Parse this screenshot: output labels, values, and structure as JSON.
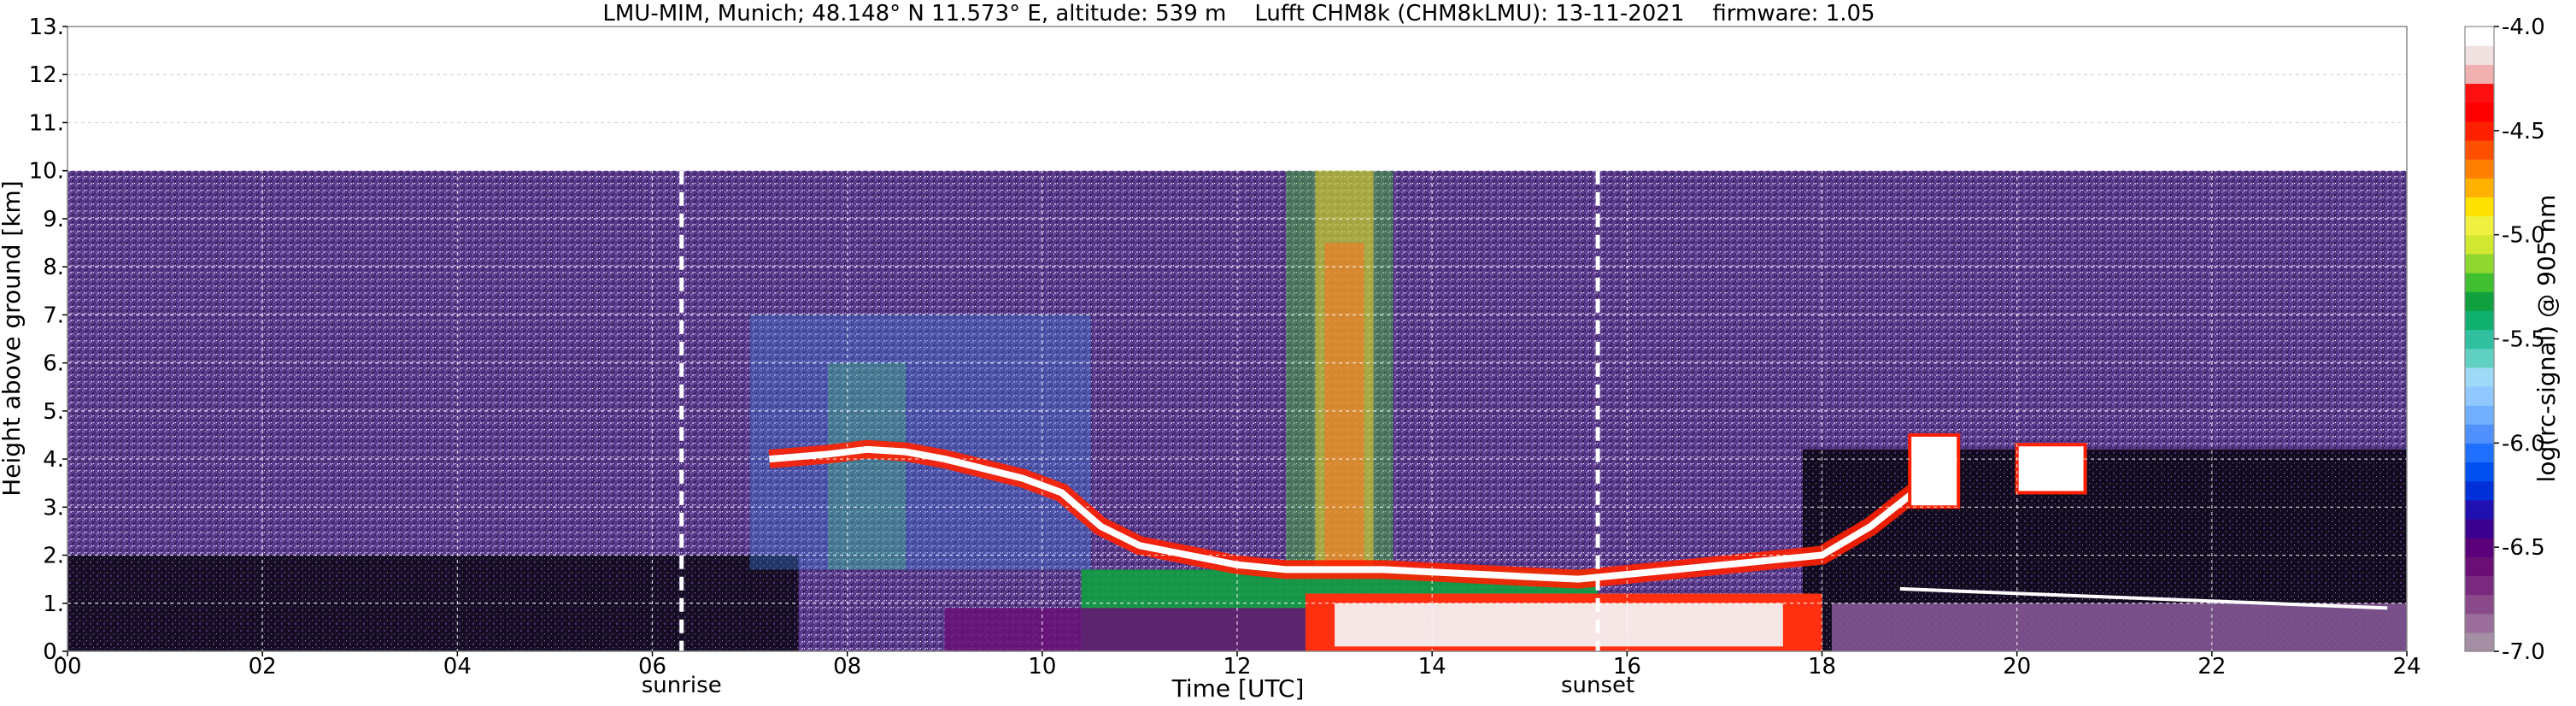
{
  "chart_data": {
    "type": "heatmap",
    "title": "LMU-MIM, Munich; 48.148° N 11.573° E, altitude: 539 m    Lufft CHM8k (CHM8kLMU): 13-11-2021    firmware: 1.05",
    "xlabel": "Time [UTC]",
    "ylabel": "Height above ground [km]",
    "xlim": [
      0,
      24
    ],
    "ylim": [
      0,
      13
    ],
    "x_ticks": [
      "00",
      "02",
      "04",
      "06",
      "08",
      "10",
      "12",
      "14",
      "16",
      "18",
      "20",
      "22",
      "24"
    ],
    "x_tick_values": [
      0,
      2,
      4,
      6,
      8,
      10,
      12,
      14,
      16,
      18,
      20,
      22,
      24
    ],
    "y_ticks": [
      "0.",
      "1.",
      "2.",
      "3.",
      "4.",
      "5.",
      "6.",
      "7.",
      "8.",
      "9.",
      "10.",
      "11.",
      "12.",
      "13."
    ],
    "y_tick_values": [
      0,
      1,
      2,
      3,
      4,
      5,
      6,
      7,
      8,
      9,
      10,
      11,
      12,
      13
    ],
    "grid": true,
    "data_top_km": 10,
    "annotations": [
      {
        "text": "sunrise",
        "x": 6.3
      },
      {
        "text": "sunset",
        "x": 15.7
      }
    ],
    "colorbar": {
      "label": "log(rc-signal) @ 905 nm",
      "range": [
        -7.0,
        -4.0
      ],
      "ticks": [
        "-4.0",
        "-4.5",
        "-5.0",
        "-5.5",
        "-6.0",
        "-6.5",
        "-7.0"
      ],
      "tick_values": [
        -4.0,
        -4.5,
        -5.0,
        -5.5,
        -6.0,
        -6.5,
        -7.0
      ],
      "colors_bottom_to_top": [
        "#a58fa5",
        "#9a6d9a",
        "#8a4a8a",
        "#7a2a7e",
        "#6a0f76",
        "#5a007a",
        "#3a0090",
        "#2010b0",
        "#0030d8",
        "#0050f0",
        "#2070ff",
        "#5090ff",
        "#70b0ff",
        "#90c8ff",
        "#a0d8f8",
        "#60d0c0",
        "#30c0a0",
        "#10b070",
        "#10a040",
        "#40c030",
        "#90d830",
        "#d0e830",
        "#f0f040",
        "#ffe000",
        "#ffb000",
        "#ff8000",
        "#ff5000",
        "#ff2000",
        "#ff0000",
        "#ff1010",
        "#f0b0b0",
        "#f0e0e0",
        "#ffffff"
      ]
    },
    "series": [
      {
        "x": [
          7.2,
          7.8,
          8.2,
          8.6,
          9.0,
          9.4,
          9.8,
          10.2,
          10.6,
          11.0,
          11.5,
          12.0,
          12.5,
          13.0,
          13.5,
          14.0,
          14.5,
          15.0,
          15.5,
          16.0,
          16.5,
          17.0,
          17.5,
          18.0,
          18.5,
          19.0,
          19.3
        ],
        "y": [
          4.0,
          4.1,
          4.2,
          4.15,
          4.0,
          3.8,
          3.6,
          3.3,
          2.6,
          2.2,
          2.0,
          1.8,
          1.7,
          1.7,
          1.7,
          1.65,
          1.6,
          1.55,
          1.5,
          1.6,
          1.7,
          1.8,
          1.9,
          2.0,
          2.6,
          3.4,
          4.0
        ]
      }
    ]
  }
}
